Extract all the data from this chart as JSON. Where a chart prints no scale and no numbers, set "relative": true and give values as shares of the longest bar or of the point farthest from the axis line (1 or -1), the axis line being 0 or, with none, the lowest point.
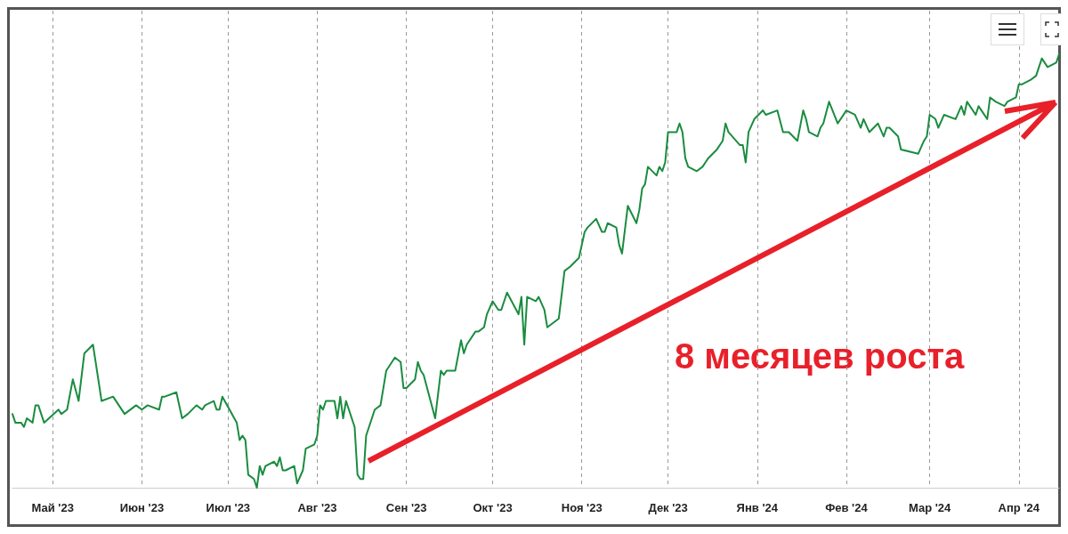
{
  "chart_data": {
    "type": "line",
    "relative": true,
    "grid": "x",
    "marker": "none",
    "line_style": "solid",
    "xlim": [
      "2023-04-17",
      "2024-04-15"
    ],
    "xticks": [
      {
        "value": "2023-05-01",
        "label": "Май '23"
      },
      {
        "value": "2023-06-01",
        "label": "Июн '23"
      },
      {
        "value": "2023-07-01",
        "label": "Июл '23"
      },
      {
        "value": "2023-08-01",
        "label": "Авг '23"
      },
      {
        "value": "2023-09-01",
        "label": "Сен '23"
      },
      {
        "value": "2023-10-01",
        "label": "Окт '23"
      },
      {
        "value": "2023-11-01",
        "label": "Ноя '23"
      },
      {
        "value": "2023-12-01",
        "label": "Дек '23"
      },
      {
        "value": "2024-01-01",
        "label": "Янв '24"
      },
      {
        "value": "2024-02-01",
        "label": "Фев '24"
      },
      {
        "value": "2024-03-01",
        "label": "Мар '24"
      },
      {
        "value": "2024-04-01",
        "label": "Апр '24"
      }
    ],
    "annotations": [
      "8 месяцев роста"
    ],
    "series": [
      {
        "color": "#1a8c3f",
        "x": [
          "2023-04-17",
          "2023-04-18",
          "2023-04-20",
          "2023-04-21",
          "2023-04-22",
          "2023-04-24",
          "2023-04-25",
          "2023-04-26",
          "2023-04-28",
          "2023-05-03",
          "2023-05-04",
          "2023-05-06",
          "2023-05-08",
          "2023-05-10",
          "2023-05-12",
          "2023-05-15",
          "2023-05-18",
          "2023-05-22",
          "2023-05-26",
          "2023-05-30",
          "2023-06-01",
          "2023-06-03",
          "2023-06-07",
          "2023-06-08",
          "2023-06-09",
          "2023-06-13",
          "2023-06-15",
          "2023-06-17",
          "2023-06-20",
          "2023-06-22",
          "2023-06-23",
          "2023-06-26",
          "2023-06-27",
          "2023-06-28",
          "2023-06-29",
          "2023-07-04",
          "2023-07-05",
          "2023-07-06",
          "2023-07-07",
          "2023-07-08",
          "2023-07-10",
          "2023-07-11",
          "2023-07-12",
          "2023-07-13",
          "2023-07-14",
          "2023-07-17",
          "2023-07-18",
          "2023-07-19",
          "2023-07-20",
          "2023-07-21",
          "2023-07-24",
          "2023-07-25",
          "2023-07-27",
          "2023-07-28",
          "2023-07-31",
          "2023-08-01",
          "2023-08-02",
          "2023-08-03",
          "2023-08-04",
          "2023-08-07",
          "2023-08-08",
          "2023-08-09",
          "2023-08-10",
          "2023-08-11",
          "2023-08-14",
          "2023-08-15",
          "2023-08-16",
          "2023-08-17",
          "2023-08-18",
          "2023-08-21",
          "2023-08-23",
          "2023-08-25",
          "2023-08-28",
          "2023-08-30",
          "2023-08-31",
          "2023-09-01",
          "2023-09-04",
          "2023-09-05",
          "2023-09-06",
          "2023-09-07",
          "2023-09-11",
          "2023-09-13",
          "2023-09-14",
          "2023-09-15",
          "2023-09-18",
          "2023-09-20",
          "2023-09-21",
          "2023-09-22",
          "2023-09-25",
          "2023-09-26",
          "2023-09-28",
          "2023-09-29",
          "2023-10-01",
          "2023-10-03",
          "2023-10-04",
          "2023-10-06",
          "2023-10-10",
          "2023-10-11",
          "2023-10-12",
          "2023-10-13",
          "2023-10-16",
          "2023-10-17",
          "2023-10-19",
          "2023-10-20",
          "2023-10-24",
          "2023-10-26",
          "2023-10-28",
          "2023-10-31",
          "2023-11-02",
          "2023-11-03",
          "2023-11-06",
          "2023-11-08",
          "2023-11-09",
          "2023-11-10",
          "2023-11-13",
          "2023-11-14",
          "2023-11-15",
          "2023-11-17",
          "2023-11-20",
          "2023-11-21",
          "2023-11-22",
          "2023-11-23",
          "2023-11-24",
          "2023-11-27",
          "2023-11-28",
          "2023-11-29",
          "2023-11-30",
          "2023-12-01",
          "2023-12-04",
          "2023-12-05",
          "2023-12-06",
          "2023-12-07",
          "2023-12-08",
          "2023-12-11",
          "2023-12-13",
          "2023-12-14",
          "2023-12-15",
          "2023-12-18",
          "2023-12-20",
          "2023-12-21",
          "2023-12-22",
          "2023-12-26",
          "2023-12-27",
          "2023-12-28",
          "2023-12-29",
          "2023-12-31",
          "2024-01-03",
          "2024-01-04",
          "2024-01-08",
          "2024-01-10",
          "2024-01-12",
          "2024-01-15",
          "2024-01-17",
          "2024-01-18",
          "2024-01-19",
          "2024-01-22",
          "2024-01-23",
          "2024-01-24",
          "2024-01-26",
          "2024-01-29",
          "2024-02-01",
          "2024-02-04",
          "2024-02-06",
          "2024-02-07",
          "2024-02-09",
          "2024-02-12",
          "2024-02-14",
          "2024-02-15",
          "2024-02-16",
          "2024-02-19",
          "2024-02-20",
          "2024-02-26",
          "2024-02-28",
          "2024-02-29",
          "2024-03-01",
          "2024-03-03",
          "2024-03-04",
          "2024-03-06",
          "2024-03-10",
          "2024-03-12",
          "2024-03-13",
          "2024-03-14",
          "2024-03-17",
          "2024-03-18",
          "2024-03-19",
          "2024-03-21",
          "2024-03-22",
          "2024-03-24",
          "2024-03-27",
          "2024-03-28",
          "2024-03-31",
          "2024-04-01",
          "2024-04-02",
          "2024-04-05",
          "2024-04-07",
          "2024-04-09",
          "2024-04-11",
          "2024-04-14",
          "2024-04-15"
        ],
        "values": [
          0.17,
          0.15,
          0.15,
          0.14,
          0.16,
          0.15,
          0.19,
          0.19,
          0.15,
          0.18,
          0.17,
          0.18,
          0.25,
          0.2,
          0.31,
          0.33,
          0.2,
          0.21,
          0.17,
          0.19,
          0.18,
          0.19,
          0.18,
          0.21,
          0.21,
          0.22,
          0.16,
          0.17,
          0.19,
          0.18,
          0.19,
          0.2,
          0.18,
          0.18,
          0.21,
          0.15,
          0.11,
          0.12,
          0.11,
          0.03,
          0.02,
          0,
          0.05,
          0.03,
          0.05,
          0.06,
          0.05,
          0.07,
          0.04,
          0.04,
          0.05,
          0.01,
          0.04,
          0.09,
          0.1,
          0.12,
          0.19,
          0.18,
          0.2,
          0.2,
          0.16,
          0.21,
          0.16,
          0.2,
          0.14,
          0.03,
          0.02,
          0.02,
          0.12,
          0.18,
          0.19,
          0.27,
          0.3,
          0.29,
          0.23,
          0.23,
          0.25,
          0.29,
          0.27,
          0.26,
          0.16,
          0.27,
          0.26,
          0.27,
          0.27,
          0.34,
          0.31,
          0.33,
          0.36,
          0.36,
          0.37,
          0.4,
          0.43,
          0.41,
          0.41,
          0.45,
          0.4,
          0.44,
          0.33,
          0.44,
          0.43,
          0.44,
          0.41,
          0.37,
          0.39,
          0.5,
          0.51,
          0.53,
          0.59,
          0.6,
          0.62,
          0.59,
          0.59,
          0.61,
          0.6,
          0.56,
          0.54,
          0.65,
          0.61,
          0.64,
          0.69,
          0.7,
          0.74,
          0.72,
          0.74,
          0.73,
          0.75,
          0.82,
          0.82,
          0.84,
          0.82,
          0.76,
          0.74,
          0.73,
          0.74,
          0.75,
          0.76,
          0.78,
          0.8,
          0.84,
          0.82,
          0.79,
          0.79,
          0.75,
          0.82,
          0.85,
          0.87,
          0.86,
          0.87,
          0.82,
          0.82,
          0.8,
          0.87,
          0.85,
          0.82,
          0.81,
          0.83,
          0.84,
          0.89,
          0.84,
          0.87,
          0.86,
          0.83,
          0.85,
          0.82,
          0.84,
          0.81,
          0.83,
          0.83,
          0.81,
          0.78,
          0.77,
          0.8,
          0.81,
          0.86,
          0.85,
          0.83,
          0.86,
          0.85,
          0.88,
          0.86,
          0.89,
          0.86,
          0.88,
          0.87,
          0.85,
          0.9,
          0.89,
          0.88,
          0.89,
          0.9,
          0.93,
          0.93,
          0.94,
          0.95,
          0.99,
          0.97,
          0.98,
          1
        ]
      }
    ]
  }
}
